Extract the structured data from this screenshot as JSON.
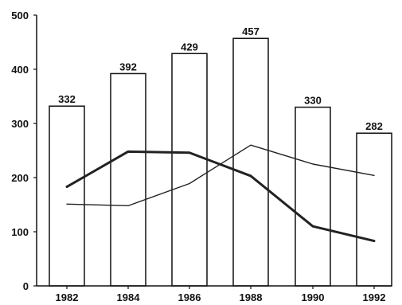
{
  "chart_data": {
    "type": "bar",
    "title": "",
    "xlabel": "",
    "ylabel": "",
    "categories": [
      "1982",
      "1984",
      "1986",
      "1988",
      "1990",
      "1992"
    ],
    "ylim": [
      0,
      500
    ],
    "yticks": [
      0,
      100,
      200,
      300,
      400,
      500
    ],
    "grid": false,
    "series": [
      {
        "type": "bar",
        "values": [
          332,
          392,
          429,
          457,
          330,
          282
        ],
        "data_labels": [
          "332",
          "392",
          "429",
          "457",
          "330",
          "282"
        ]
      }
    ],
    "lines": [
      {
        "type": "line",
        "style": "thick",
        "values": [
          183,
          248,
          246,
          203,
          110,
          83
        ]
      },
      {
        "type": "line",
        "style": "thin",
        "values": [
          151,
          148,
          189,
          260,
          225,
          204
        ]
      }
    ],
    "colors": {
      "bar_fill": "#ffffff",
      "bar_stroke": "#111111",
      "line": "#222222",
      "axis": "#111111"
    }
  }
}
